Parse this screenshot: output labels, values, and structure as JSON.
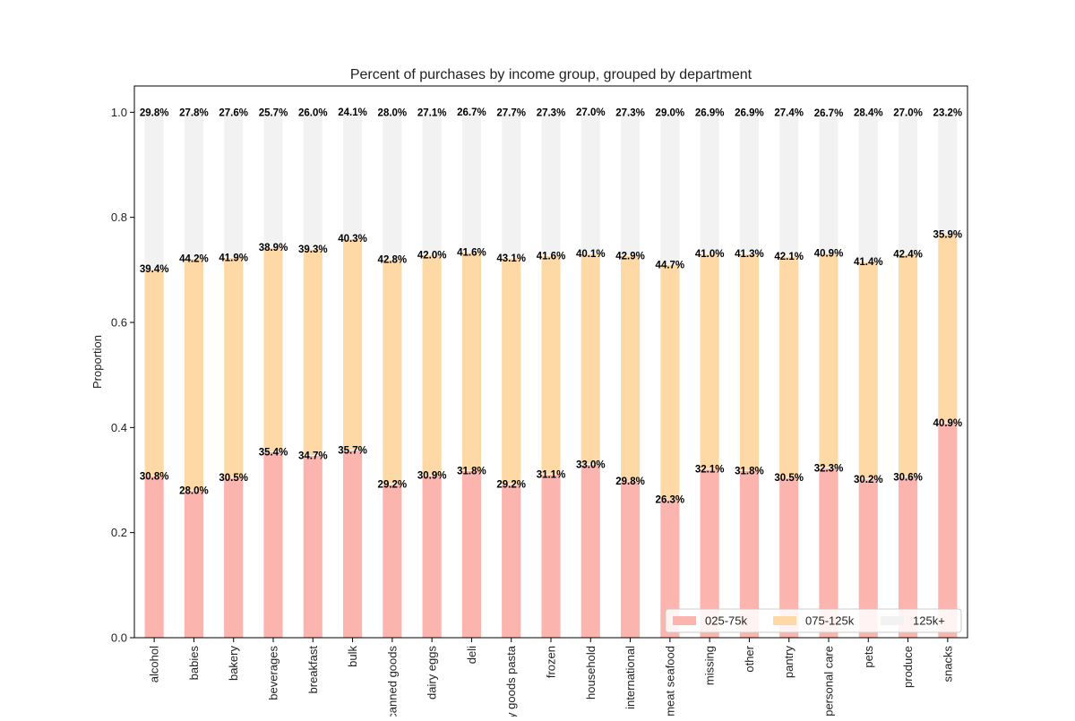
{
  "chart_data": {
    "type": "bar",
    "stacked": true,
    "title": "Percent of purchases by income group, grouped by department",
    "ylabel": "Proportion",
    "xlabel": "",
    "ylim": [
      0,
      1.05
    ],
    "yticks": [
      "0.0",
      "0.2",
      "0.4",
      "0.6",
      "0.8",
      "1.0"
    ],
    "grid": false,
    "legend_position": "bottom-right",
    "categories": [
      "alcohol",
      "babies",
      "bakery",
      "beverages",
      "breakfast",
      "bulk",
      "canned goods",
      "dairy eggs",
      "deli",
      "dry goods pasta",
      "frozen",
      "household",
      "international",
      "meat seafood",
      "missing",
      "other",
      "pantry",
      "personal care",
      "pets",
      "produce",
      "snacks"
    ],
    "series": [
      {
        "name": "025-75k",
        "color": "#fbb4ae",
        "values": [
          0.308,
          0.28,
          0.305,
          0.354,
          0.347,
          0.357,
          0.292,
          0.309,
          0.318,
          0.292,
          0.311,
          0.33,
          0.298,
          0.263,
          0.321,
          0.318,
          0.305,
          0.323,
          0.302,
          0.306,
          0.409
        ],
        "labels": [
          "30.8%",
          "28.0%",
          "30.5%",
          "35.4%",
          "34.7%",
          "35.7%",
          "29.2%",
          "30.9%",
          "31.8%",
          "29.2%",
          "31.1%",
          "33.0%",
          "29.8%",
          "26.3%",
          "32.1%",
          "31.8%",
          "30.5%",
          "32.3%",
          "30.2%",
          "30.6%",
          "40.9%"
        ]
      },
      {
        "name": "075-125k",
        "color": "#fed9a6",
        "values": [
          0.394,
          0.442,
          0.419,
          0.389,
          0.393,
          0.403,
          0.428,
          0.42,
          0.416,
          0.431,
          0.416,
          0.401,
          0.429,
          0.447,
          0.41,
          0.413,
          0.421,
          0.409,
          0.414,
          0.424,
          0.359
        ],
        "labels": [
          "39.4%",
          "44.2%",
          "41.9%",
          "38.9%",
          "39.3%",
          "40.3%",
          "42.8%",
          "42.0%",
          "41.6%",
          "43.1%",
          "41.6%",
          "40.1%",
          "42.9%",
          "44.7%",
          "41.0%",
          "41.3%",
          "42.1%",
          "40.9%",
          "41.4%",
          "42.4%",
          "35.9%"
        ]
      },
      {
        "name": "125k+",
        "color": "#f2f2f2",
        "values": [
          0.298,
          0.278,
          0.276,
          0.257,
          0.26,
          0.241,
          0.28,
          0.271,
          0.267,
          0.277,
          0.273,
          0.27,
          0.273,
          0.29,
          0.269,
          0.269,
          0.274,
          0.267,
          0.284,
          0.27,
          0.232
        ],
        "labels": [
          "29.8%",
          "27.8%",
          "27.6%",
          "25.7%",
          "26.0%",
          "24.1%",
          "28.0%",
          "27.1%",
          "26.7%",
          "27.7%",
          "27.3%",
          "27.0%",
          "27.3%",
          "29.0%",
          "26.9%",
          "26.9%",
          "27.4%",
          "26.7%",
          "28.4%",
          "27.0%",
          "23.2%"
        ]
      }
    ]
  }
}
